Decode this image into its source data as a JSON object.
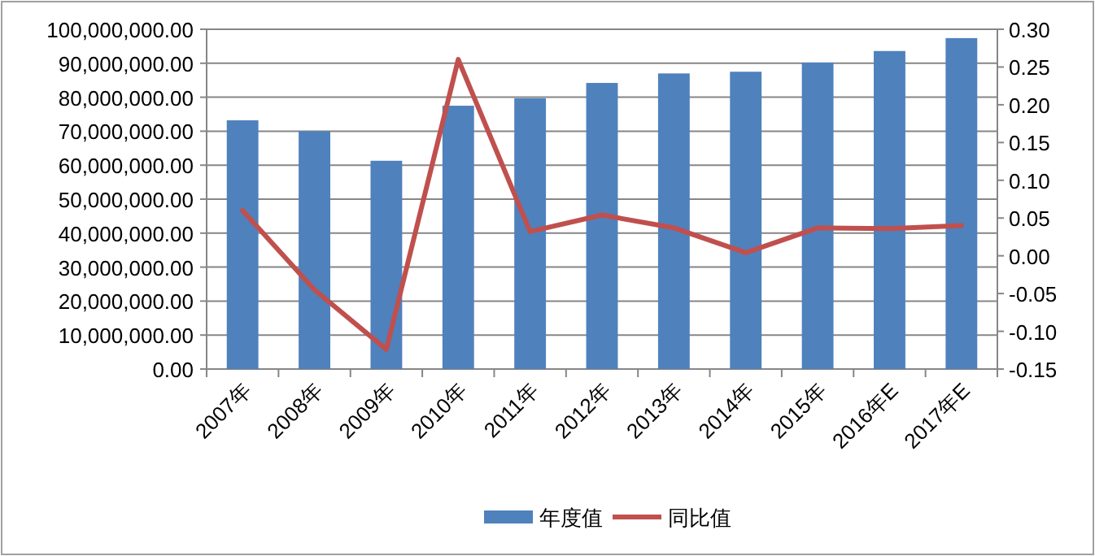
{
  "chart_data": {
    "type": "bar",
    "categories": [
      "2007年",
      "2008年",
      "2009年",
      "2010年",
      "2011年",
      "2012年",
      "2013年",
      "2014年",
      "2015年",
      "2016年E",
      "2017年E"
    ],
    "series": [
      {
        "name": "年度值",
        "color": "#4f81bd",
        "values": [
          73200000,
          70000000,
          61300000,
          77500000,
          79700000,
          84200000,
          87000000,
          87500000,
          90200000,
          93600000,
          97400000
        ]
      },
      {
        "name": "同比值",
        "type": "line",
        "axis": "y2",
        "color": "#c0504d",
        "values": [
          0.06,
          -0.045,
          -0.124,
          0.26,
          0.032,
          0.054,
          0.037,
          0.004,
          0.037,
          0.036,
          0.04
        ]
      }
    ],
    "ylim": [
      0,
      100000000
    ],
    "yticks": [
      {
        "value": 0,
        "label": "0.00"
      },
      {
        "value": 10000000,
        "label": "10,000,000.00"
      },
      {
        "value": 20000000,
        "label": "20,000,000.00"
      },
      {
        "value": 30000000,
        "label": "30,000,000.00"
      },
      {
        "value": 40000000,
        "label": "40,000,000.00"
      },
      {
        "value": 50000000,
        "label": "50,000,000.00"
      },
      {
        "value": 60000000,
        "label": "60,000,000.00"
      },
      {
        "value": 70000000,
        "label": "70,000,000.00"
      },
      {
        "value": 80000000,
        "label": "80,000,000.00"
      },
      {
        "value": 90000000,
        "label": "90,000,000.00"
      },
      {
        "value": 100000000,
        "label": "100,000,000.00"
      }
    ],
    "y2lim": [
      -0.15,
      0.3
    ],
    "y2ticks": [
      {
        "value": -0.15,
        "label": "-0.15"
      },
      {
        "value": -0.1,
        "label": "-0.10"
      },
      {
        "value": -0.05,
        "label": "-0.05"
      },
      {
        "value": 0,
        "label": "0.00"
      },
      {
        "value": 0.05,
        "label": "0.05"
      },
      {
        "value": 0.1,
        "label": "0.10"
      },
      {
        "value": 0.15,
        "label": "0.15"
      },
      {
        "value": 0.2,
        "label": "0.20"
      },
      {
        "value": 0.25,
        "label": "0.25"
      },
      {
        "value": 0.3,
        "label": "0.30"
      }
    ],
    "grid": "y",
    "legend": "bottom",
    "marker": "none"
  }
}
